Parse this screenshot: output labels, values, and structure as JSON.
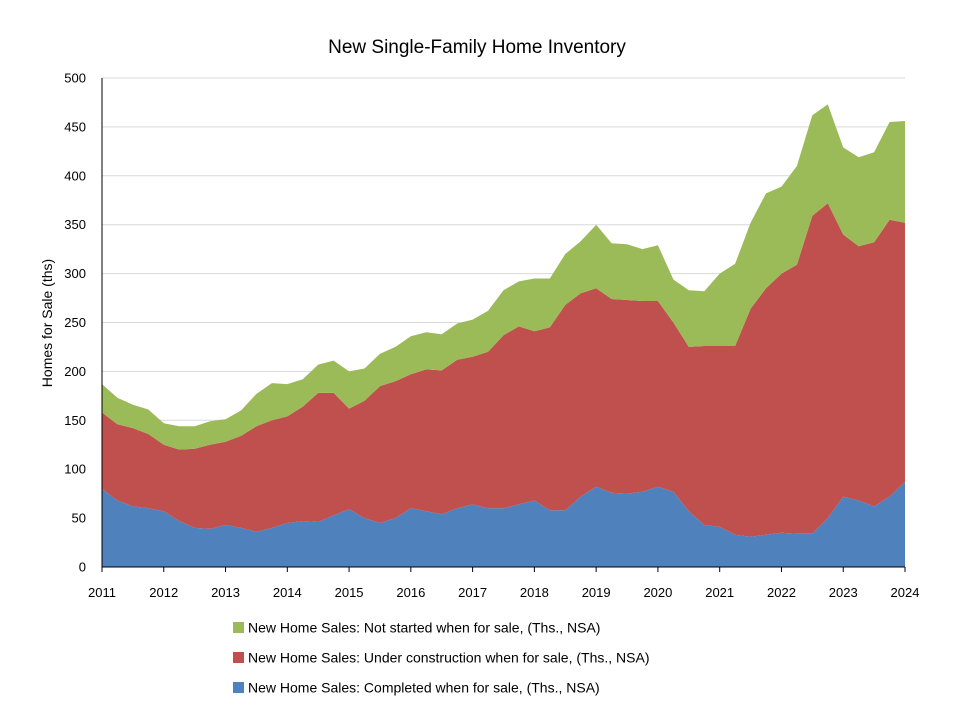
{
  "chart_data": {
    "type": "area",
    "stacked": true,
    "title": "New Single-Family Home Inventory",
    "xlabel": "",
    "ylabel": "Homes for Sale (ths)",
    "ylim": [
      0,
      500
    ],
    "xlim": [
      2011,
      2024
    ],
    "y_ticks": [
      "0",
      "50",
      "100",
      "150",
      "200",
      "250",
      "300",
      "350",
      "400",
      "450",
      "500"
    ],
    "x_ticks": [
      "2011",
      "2012",
      "2013",
      "2014",
      "2015",
      "2016",
      "2017",
      "2018",
      "2019",
      "2020",
      "2021",
      "2022",
      "2023",
      "2024"
    ],
    "grid": "horizontal",
    "legend_position": "bottom",
    "x": [
      2011.0,
      2011.25,
      2011.5,
      2011.75,
      2012.0,
      2012.25,
      2012.5,
      2012.75,
      2013.0,
      2013.25,
      2013.5,
      2013.75,
      2014.0,
      2014.25,
      2014.5,
      2014.75,
      2015.0,
      2015.25,
      2015.5,
      2015.75,
      2016.0,
      2016.25,
      2016.5,
      2016.75,
      2017.0,
      2017.25,
      2017.5,
      2017.75,
      2018.0,
      2018.25,
      2018.5,
      2018.75,
      2019.0,
      2019.25,
      2019.5,
      2019.75,
      2020.0,
      2020.25,
      2020.5,
      2020.75,
      2021.0,
      2021.25,
      2021.5,
      2021.75,
      2022.0,
      2022.25,
      2022.5,
      2022.75,
      2023.0,
      2023.25,
      2023.5,
      2023.75,
      2024.0
    ],
    "series": [
      {
        "name": "New Home Sales: Completed when for sale, (Ths., NSA)",
        "color": "#4F81BD",
        "values": [
          80,
          68,
          62,
          60,
          57,
          47,
          40,
          39,
          43,
          40,
          36,
          40,
          45,
          47,
          46,
          53,
          59,
          50,
          45,
          50,
          60,
          57,
          54,
          60,
          64,
          60,
          60,
          64,
          68,
          58,
          58,
          72,
          82,
          76,
          75,
          77,
          82,
          77,
          57,
          43,
          41,
          33,
          31,
          33,
          35,
          34,
          34,
          50,
          72,
          68,
          62,
          72,
          87
        ]
      },
      {
        "name": "New Home Sales: Under construction when for sale, (Ths., NSA)",
        "color": "#C0504D",
        "values": [
          78,
          78,
          80,
          76,
          68,
          73,
          81,
          86,
          85,
          94,
          108,
          110,
          109,
          117,
          132,
          125,
          103,
          120,
          140,
          140,
          137,
          145,
          147,
          152,
          151,
          160,
          177,
          182,
          173,
          187,
          210,
          208,
          203,
          198,
          198,
          195,
          190,
          173,
          168,
          183,
          185,
          193,
          233,
          252,
          265,
          275,
          325,
          322,
          268,
          260,
          270,
          283,
          265
        ]
      },
      {
        "name": "New Home Sales: Not started when for sale, (Ths., NSA)",
        "color": "#9BBB59",
        "values": [
          29,
          27,
          24,
          25,
          22,
          24,
          23,
          24,
          23,
          26,
          33,
          38,
          33,
          28,
          29,
          33,
          38,
          33,
          33,
          35,
          39,
          38,
          37,
          37,
          38,
          42,
          46,
          46,
          54,
          50,
          52,
          53,
          65,
          57,
          57,
          53,
          57,
          44,
          58,
          56,
          74,
          84,
          88,
          97,
          89,
          101,
          103,
          101,
          89,
          91,
          92,
          100,
          104
        ]
      }
    ]
  }
}
